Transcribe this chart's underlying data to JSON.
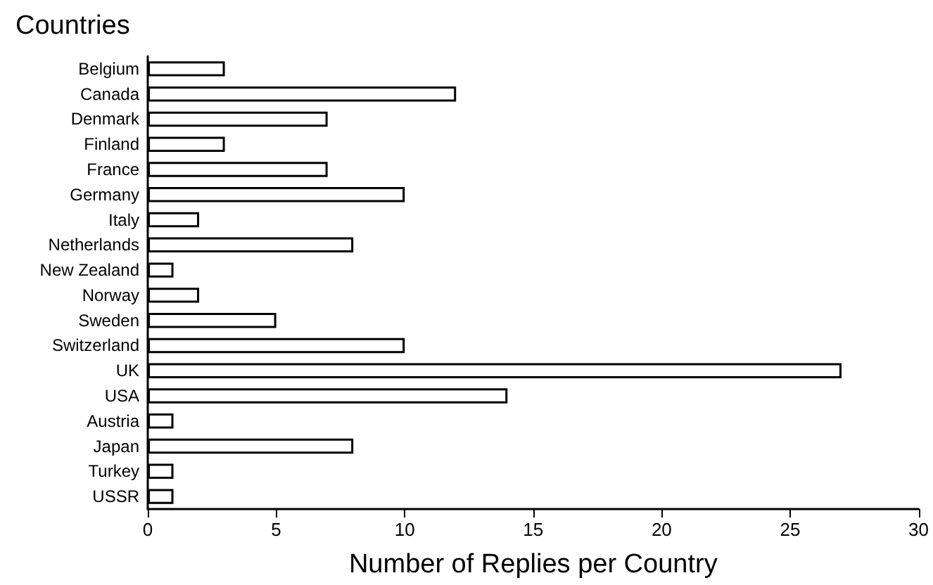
{
  "chart_data": {
    "type": "bar",
    "orientation": "horizontal",
    "ylabel": "Countries",
    "xlabel": "Number of Replies per Country",
    "categories": [
      "Belgium",
      "Canada",
      "Denmark",
      "Finland",
      "France",
      "Germany",
      "Italy",
      "Netherlands",
      "New Zealand",
      "Norway",
      "Sweden",
      "Switzerland",
      "UK",
      "USA",
      "Austria",
      "Japan",
      "Turkey",
      "USSR"
    ],
    "values": [
      3,
      12,
      7,
      3,
      7,
      10,
      2,
      8,
      1,
      2,
      5,
      10,
      27,
      14,
      1,
      8,
      1,
      1
    ],
    "color": "#ffffff",
    "xlim": [
      0,
      30
    ],
    "xticks": [
      0,
      5,
      10,
      15,
      20,
      25,
      30
    ],
    "grid": false
  }
}
